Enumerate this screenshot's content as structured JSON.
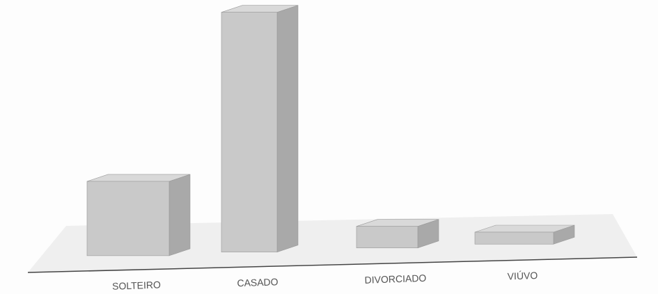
{
  "chart_data": {
    "type": "bar3d",
    "categories": [
      "SOLTEIRO",
      "CASADO",
      "DIVORCIADO",
      "VIÚVO"
    ],
    "values": [
      31,
      100,
      9,
      5
    ],
    "color": "#c9c9c9"
  }
}
